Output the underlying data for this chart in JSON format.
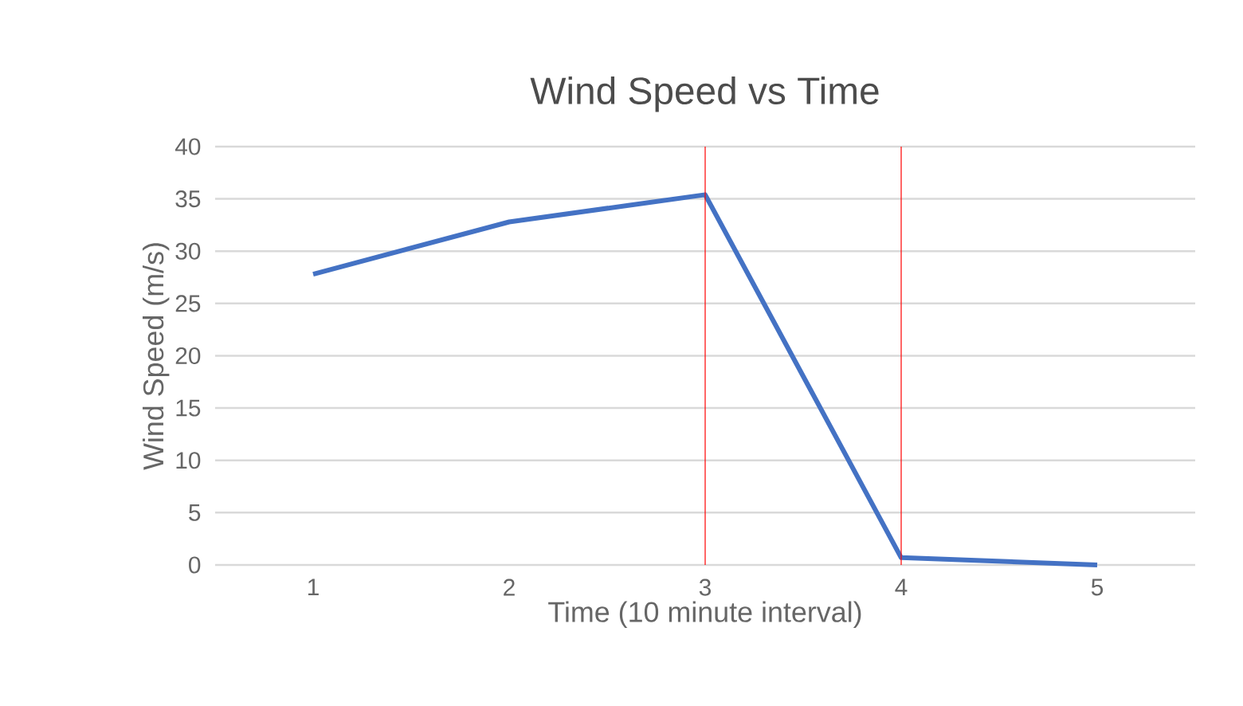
{
  "chart_data": {
    "type": "line",
    "title": "Wind Speed vs Time",
    "xlabel": "Time (10 minute interval)",
    "ylabel": "Wind Speed (m/s)",
    "x": [
      1,
      2,
      3,
      4,
      5
    ],
    "series": [
      {
        "color": "#4472c4",
        "values": [
          27.8,
          32.8,
          35.4,
          0.7,
          0
        ]
      }
    ],
    "xlim": [
      0.5,
      5.5
    ],
    "xticks": [
      1,
      2,
      3,
      4,
      5
    ],
    "ylim": [
      0,
      40
    ],
    "yticks": [
      0,
      5,
      10,
      15,
      20,
      25,
      30,
      35,
      40
    ],
    "grid": "y",
    "marker": "none",
    "line_style": "solid",
    "ref_lines": [
      {
        "axis": "x",
        "value": 3,
        "color": "#ff0000"
      },
      {
        "axis": "x",
        "value": 4,
        "color": "#ff0000"
      }
    ]
  }
}
